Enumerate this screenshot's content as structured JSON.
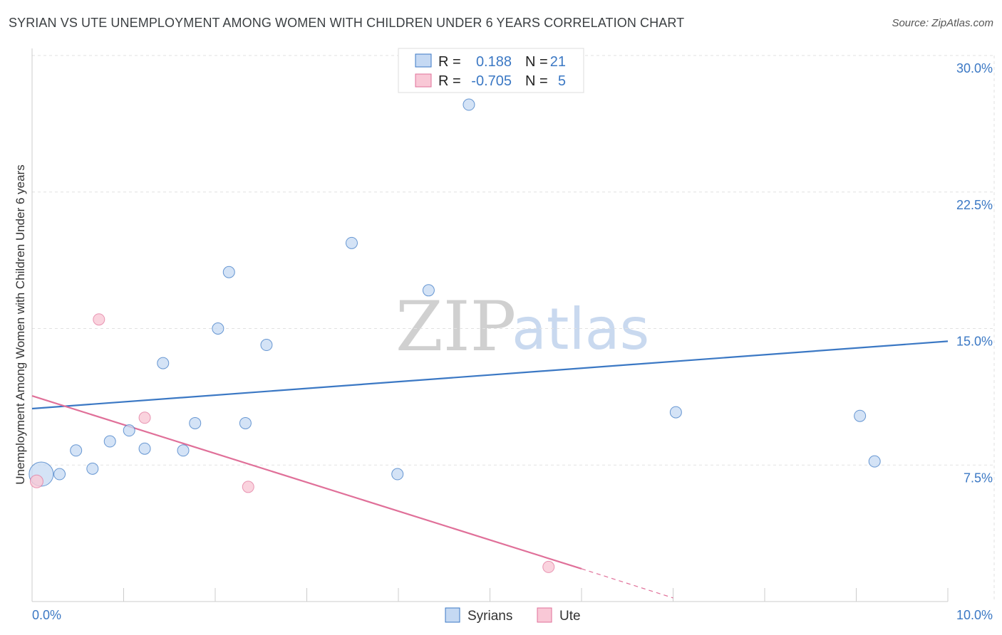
{
  "title": "SYRIAN VS UTE UNEMPLOYMENT AMONG WOMEN WITH CHILDREN UNDER 6 YEARS CORRELATION CHART",
  "source": "Source: ZipAtlas.com",
  "watermark": {
    "zip": "ZIP",
    "atlas": "atlas"
  },
  "legend": {
    "rows": [
      {
        "r_label": "R =",
        "r_value": "0.188",
        "n_label": "N =",
        "n_value": "21"
      },
      {
        "r_label": "R =",
        "r_value": "-0.705",
        "n_label": "N =",
        "n_value": "5"
      }
    ]
  },
  "chart_data": {
    "type": "scatter",
    "title": "SYRIAN VS UTE UNEMPLOYMENT AMONG WOMEN WITH CHILDREN UNDER 6 YEARS CORRELATION CHART",
    "xlabel": "",
    "ylabel": "Unemployment Among Women with Children Under 6 years",
    "xlim": [
      0,
      10
    ],
    "ylim": [
      0,
      30
    ],
    "x_tick_labels": [
      "0.0%",
      "10.0%"
    ],
    "y_ticks": [
      7.5,
      15.0,
      22.5,
      30.0
    ],
    "y_tick_labels": [
      "7.5%",
      "15.0%",
      "22.5%",
      "30.0%"
    ],
    "grid": true,
    "colors": {
      "Syrians": "#3b78c4",
      "Ute": "#e07099",
      "syr_fill": "#c5d9f3",
      "ute_fill": "#f9c8d6"
    },
    "series": [
      {
        "name": "Syrians",
        "points": [
          [
            0.1,
            7.0
          ],
          [
            0.3,
            7.0
          ],
          [
            0.48,
            8.3
          ],
          [
            0.66,
            7.3
          ],
          [
            0.85,
            8.8
          ],
          [
            1.06,
            9.4
          ],
          [
            1.23,
            8.4
          ],
          [
            1.43,
            13.1
          ],
          [
            1.65,
            8.3
          ],
          [
            1.78,
            9.8
          ],
          [
            2.03,
            15.0
          ],
          [
            2.15,
            18.1
          ],
          [
            2.33,
            9.8
          ],
          [
            2.56,
            14.1
          ],
          [
            3.49,
            19.7
          ],
          [
            3.99,
            7.0
          ],
          [
            4.33,
            17.1
          ],
          [
            4.77,
            27.3
          ],
          [
            7.03,
            10.4
          ],
          [
            9.04,
            10.2
          ],
          [
            9.2,
            7.7
          ]
        ],
        "trend": {
          "x0": 0.0,
          "y0": 10.6,
          "x1": 10.0,
          "y1": 14.3
        }
      },
      {
        "name": "Ute",
        "points": [
          [
            0.05,
            6.6
          ],
          [
            0.73,
            15.5
          ],
          [
            1.23,
            10.1
          ],
          [
            2.36,
            6.3
          ],
          [
            5.64,
            1.9
          ]
        ],
        "trend": {
          "x0": 0.0,
          "y0": 11.3,
          "x1": 6.0,
          "y1": 1.8,
          "dash_to_x": 7.0,
          "dash_to_y": 0.2
        }
      }
    ]
  }
}
